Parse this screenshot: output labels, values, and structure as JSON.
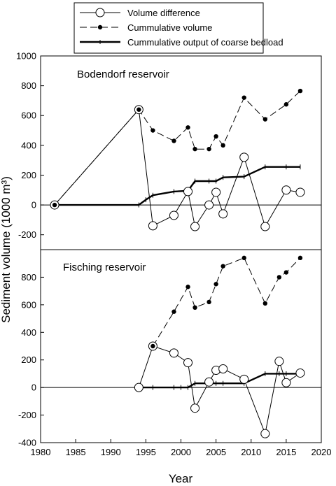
{
  "chart_data": {
    "type": "line",
    "xlabel": "Year",
    "ylabel": "Sediment volume (1000 m³)",
    "xlim": [
      1980,
      2020
    ],
    "xticks": [
      1980,
      1985,
      1990,
      1995,
      2000,
      2005,
      2010,
      2015,
      2020
    ],
    "legend": {
      "placement": "top",
      "entries": [
        {
          "key": "diff",
          "label": "Volume difference"
        },
        {
          "key": "cum",
          "label": "Cummulative volume"
        },
        {
          "key": "bed",
          "label": "Cummulative output of coarse bedload"
        }
      ]
    },
    "panels": [
      {
        "title": "Bodendorf reservoir",
        "ylim": [
          -300,
          1000
        ],
        "yticks": [
          -200,
          0,
          200,
          400,
          600,
          800,
          1000
        ],
        "series": {
          "diff": [
            [
              1982,
              0
            ],
            [
              1994,
              640
            ],
            [
              1996,
              -140
            ],
            [
              1999,
              -70
            ],
            [
              2001,
              90
            ],
            [
              2002,
              -145
            ],
            [
              2004,
              0
            ],
            [
              2005,
              85
            ],
            [
              2006,
              -60
            ],
            [
              2009,
              320
            ],
            [
              2012,
              -145
            ],
            [
              2015,
              100
            ],
            [
              2017,
              85
            ]
          ],
          "cum": [
            [
              1982,
              0
            ],
            [
              1994,
              640
            ],
            [
              1996,
              500
            ],
            [
              1999,
              430
            ],
            [
              2001,
              520
            ],
            [
              2002,
              375
            ],
            [
              2004,
              375
            ],
            [
              2005,
              460
            ],
            [
              2006,
              400
            ],
            [
              2009,
              720
            ],
            [
              2012,
              575
            ],
            [
              2015,
              675
            ],
            [
              2017,
              765
            ]
          ],
          "bed": [
            [
              1982,
              0
            ],
            [
              1994,
              0
            ],
            [
              1995,
              35
            ],
            [
              1996,
              65
            ],
            [
              1999,
              90
            ],
            [
              2001,
              95
            ],
            [
              2002,
              160
            ],
            [
              2004,
              160
            ],
            [
              2005,
              160
            ],
            [
              2006,
              185
            ],
            [
              2009,
              190
            ],
            [
              2012,
              255
            ],
            [
              2015,
              255
            ],
            [
              2017,
              255
            ]
          ]
        }
      },
      {
        "title": "Fisching reservoir",
        "ylim": [
          -400,
          1000
        ],
        "yticks": [
          -400,
          -200,
          0,
          200,
          400,
          600,
          800
        ],
        "series": {
          "diff": [
            [
              1994,
              0
            ],
            [
              1996,
              300
            ],
            [
              1999,
              250
            ],
            [
              2001,
              180
            ],
            [
              2002,
              -150
            ],
            [
              2004,
              40
            ],
            [
              2005,
              125
            ],
            [
              2006,
              135
            ],
            [
              2009,
              60
            ],
            [
              2012,
              -335
            ],
            [
              2014,
              190
            ],
            [
              2015,
              35
            ],
            [
              2017,
              105
            ]
          ],
          "cum": [
            [
              1996,
              300
            ],
            [
              1999,
              550
            ],
            [
              2001,
              730
            ],
            [
              2002,
              580
            ],
            [
              2004,
              620
            ],
            [
              2005,
              750
            ],
            [
              2006,
              880
            ],
            [
              2009,
              940
            ],
            [
              2012,
              610
            ],
            [
              2014,
              800
            ],
            [
              2015,
              835
            ],
            [
              2017,
              940
            ]
          ],
          "bed": [
            [
              1994,
              0
            ],
            [
              1996,
              0
            ],
            [
              1999,
              0
            ],
            [
              2000,
              0
            ],
            [
              2001,
              0
            ],
            [
              2002,
              30
            ],
            [
              2004,
              30
            ],
            [
              2005,
              30
            ],
            [
              2006,
              30
            ],
            [
              2009,
              30
            ],
            [
              2012,
              100
            ],
            [
              2014,
              100
            ],
            [
              2015,
              100
            ],
            [
              2017,
              100
            ]
          ]
        }
      }
    ]
  }
}
